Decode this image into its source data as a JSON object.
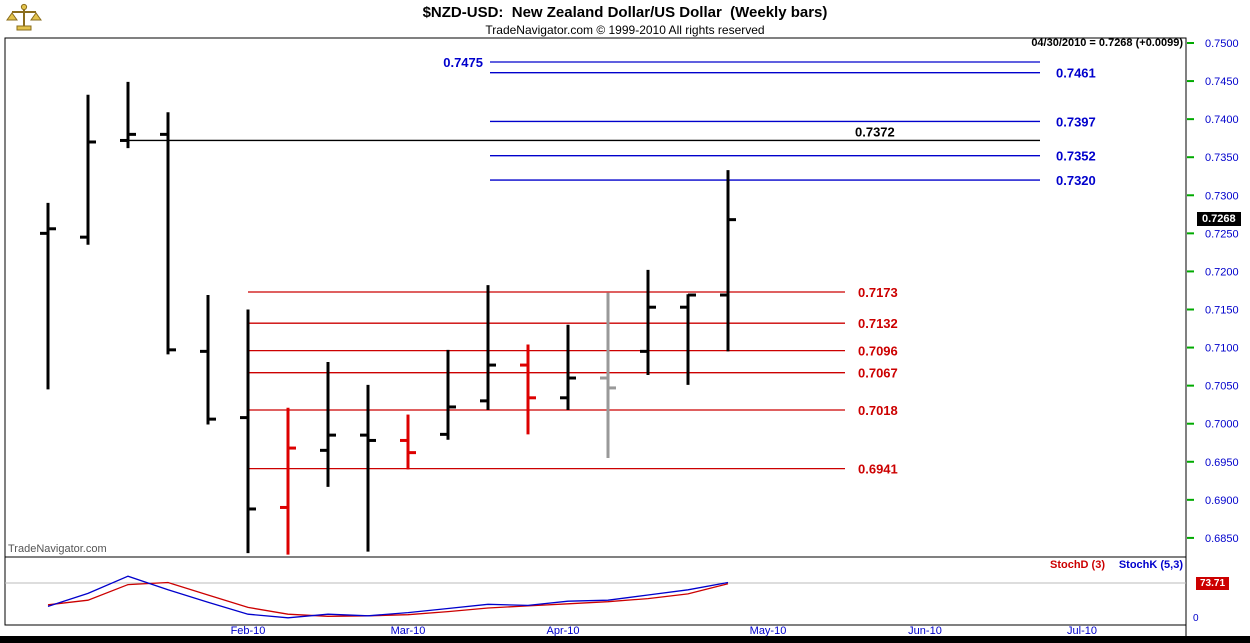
{
  "header": {
    "title": "$NZD-USD:  New Zealand Dollar/US Dollar  (Weekly bars)",
    "copyright": "TradeNavigator.com © 1999-2010 All rights reserved",
    "quote": "04/30/2010 = 0.7268 (+0.0099)"
  },
  "watermark": "TradeNavigator.com",
  "colors": {
    "blue": "#0000cc",
    "red": "#cc0000",
    "bar_red": "#dd0000",
    "black": "#000000",
    "gray": "#999999",
    "green_tick": "#00aa00",
    "grid_gray": "#bbbbbb",
    "gold": "#d9b93c"
  },
  "chart_data": {
    "type": "ohlc-bar",
    "title": "$NZD-USD: New Zealand Dollar/US Dollar (Weekly bars)",
    "last_quote": {
      "date": "04/30/2010",
      "close": 0.7268,
      "change": "+0.0099"
    },
    "y_axis": {
      "ticks": [
        0.75,
        0.745,
        0.74,
        0.735,
        0.73,
        0.725,
        0.72,
        0.715,
        0.71,
        0.705,
        0.7,
        0.695,
        0.69,
        0.685
      ],
      "range": [
        0.6826,
        0.7507
      ]
    },
    "x_axis": {
      "month_labels": [
        "Feb-10",
        "Mar-10",
        "Apr-10",
        "May-10",
        "Jun-10",
        "Jul-10"
      ]
    },
    "bars": [
      {
        "o": 0.725,
        "h": 0.729,
        "l": 0.7045,
        "c": 0.7256,
        "color": "black"
      },
      {
        "o": 0.7245,
        "h": 0.7432,
        "l": 0.7235,
        "c": 0.737,
        "color": "black"
      },
      {
        "o": 0.7372,
        "h": 0.7449,
        "l": 0.7362,
        "c": 0.738,
        "color": "black"
      },
      {
        "o": 0.738,
        "h": 0.7409,
        "l": 0.7091,
        "c": 0.7097,
        "color": "black"
      },
      {
        "o": 0.7095,
        "h": 0.7169,
        "l": 0.6999,
        "c": 0.7006,
        "color": "black"
      },
      {
        "o": 0.7008,
        "h": 0.715,
        "l": 0.683,
        "c": 0.6888,
        "color": "black"
      },
      {
        "o": 0.689,
        "h": 0.7021,
        "l": 0.6828,
        "c": 0.6968,
        "color": "red"
      },
      {
        "o": 0.6965,
        "h": 0.7081,
        "l": 0.6917,
        "c": 0.6985,
        "color": "black"
      },
      {
        "o": 0.6985,
        "h": 0.7051,
        "l": 0.6832,
        "c": 0.6978,
        "color": "black"
      },
      {
        "o": 0.6978,
        "h": 0.7012,
        "l": 0.694,
        "c": 0.6962,
        "color": "red"
      },
      {
        "o": 0.6986,
        "h": 0.7097,
        "l": 0.6979,
        "c": 0.7022,
        "color": "black"
      },
      {
        "o": 0.703,
        "h": 0.7182,
        "l": 0.7018,
        "c": 0.7077,
        "color": "black"
      },
      {
        "o": 0.7077,
        "h": 0.7104,
        "l": 0.6986,
        "c": 0.7034,
        "color": "red"
      },
      {
        "o": 0.7034,
        "h": 0.713,
        "l": 0.7018,
        "c": 0.706,
        "color": "black"
      },
      {
        "o": 0.706,
        "h": 0.7172,
        "l": 0.6955,
        "c": 0.7047,
        "color": "gray"
      },
      {
        "o": 0.7095,
        "h": 0.7202,
        "l": 0.7064,
        "c": 0.7153,
        "color": "black"
      },
      {
        "o": 0.7153,
        "h": 0.717,
        "l": 0.7051,
        "c": 0.7169,
        "color": "black"
      },
      {
        "o": 0.7169,
        "h": 0.7333,
        "l": 0.7095,
        "c": 0.7268,
        "color": "black"
      }
    ],
    "levels": [
      {
        "price": 0.7475,
        "label": "0.7475",
        "color": "blue",
        "label_side": "left"
      },
      {
        "price": 0.7461,
        "label": "0.7461",
        "color": "blue",
        "label_side": "right"
      },
      {
        "price": 0.7397,
        "label": "0.7397",
        "color": "blue",
        "label_side": "right"
      },
      {
        "price": 0.7372,
        "label": "0.7372",
        "color": "black",
        "label_side": "above"
      },
      {
        "price": 0.7352,
        "label": "0.7352",
        "color": "blue",
        "label_side": "right"
      },
      {
        "price": 0.732,
        "label": "0.7320",
        "color": "blue",
        "label_side": "right"
      },
      {
        "price": 0.7173,
        "label": "0.7173",
        "color": "red",
        "label_side": "right"
      },
      {
        "price": 0.7132,
        "label": "0.7132",
        "color": "red",
        "label_side": "right"
      },
      {
        "price": 0.7096,
        "label": "0.7096",
        "color": "red",
        "label_side": "right"
      },
      {
        "price": 0.7067,
        "label": "0.7067",
        "color": "red",
        "label_side": "right"
      },
      {
        "price": 0.7018,
        "label": "0.7018",
        "color": "red",
        "label_side": "right"
      },
      {
        "price": 0.6941,
        "label": "0.6941",
        "color": "red",
        "label_side": "right"
      }
    ],
    "stochastic": {
      "d_label": "StochD (3)",
      "k_label": "StochK (5,3)",
      "current_d": 73.71,
      "zero_label": "0",
      "k": [
        30,
        55,
        88,
        62,
        38,
        15,
        8,
        15,
        12,
        18,
        26,
        34,
        32,
        40,
        42,
        52,
        62,
        76
      ],
      "d": [
        33,
        42,
        72,
        76,
        52,
        28,
        15,
        11,
        12,
        14,
        20,
        27,
        31,
        35,
        39,
        45,
        54,
        73.71
      ]
    }
  }
}
